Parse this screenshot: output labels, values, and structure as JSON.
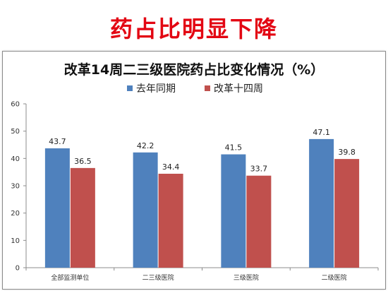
{
  "headline": "药占比明显下降",
  "chart_data": {
    "type": "bar",
    "title": "改革14周二三级医院药占比变化情况（%）",
    "categories": [
      "全部监测单位",
      "二三级医院",
      "三级医院",
      "二级医院"
    ],
    "series": [
      {
        "name": "去年同期",
        "color": "#4f81bd",
        "values": [
          43.7,
          42.2,
          41.5,
          47.1
        ]
      },
      {
        "name": "改革十四周",
        "color": "#c0504d",
        "values": [
          36.5,
          34.4,
          33.7,
          39.8
        ]
      }
    ],
    "ylim": [
      0,
      60
    ],
    "yticks": [
      0,
      10,
      20,
      30,
      40,
      50,
      60
    ],
    "grid": false,
    "legend_position": "top"
  }
}
